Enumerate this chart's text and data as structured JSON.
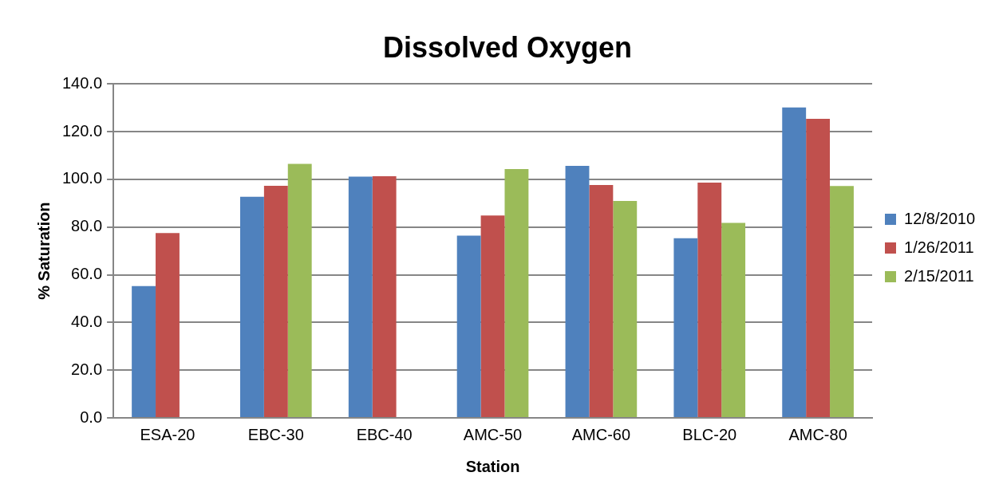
{
  "chart_data": {
    "type": "bar",
    "title": "Dissolved Oxygen",
    "xlabel": "Station",
    "ylabel": "% Saturation",
    "categories": [
      "ESA-20",
      "EBC-30",
      "EBC-40",
      "AMC-50",
      "AMC-60",
      "BLC-20",
      "AMC-80"
    ],
    "series": [
      {
        "name": "12/8/2010",
        "color": "#4f81bd",
        "values": [
          55.2,
          92.7,
          101.1,
          76.4,
          105.6,
          75.3,
          130.1
        ]
      },
      {
        "name": "1/26/2011",
        "color": "#c0504d",
        "values": [
          77.5,
          97.3,
          101.3,
          84.8,
          97.6,
          98.6,
          125.4
        ]
      },
      {
        "name": "2/15/2011",
        "color": "#9bbb59",
        "values": [
          null,
          106.5,
          null,
          104.3,
          90.9,
          81.7,
          97.2
        ]
      }
    ],
    "ylim": [
      0,
      140
    ],
    "yticks": [
      {
        "value": 0,
        "label": "0.0"
      },
      {
        "value": 20,
        "label": "20.0"
      },
      {
        "value": 40,
        "label": "40.0"
      },
      {
        "value": 60,
        "label": "60.0"
      },
      {
        "value": 80,
        "label": "80.0"
      },
      {
        "value": 100,
        "label": "100.0"
      },
      {
        "value": 120,
        "label": "120.0"
      },
      {
        "value": 140,
        "label": "140.0"
      }
    ],
    "grid": "y",
    "legend": "right"
  }
}
